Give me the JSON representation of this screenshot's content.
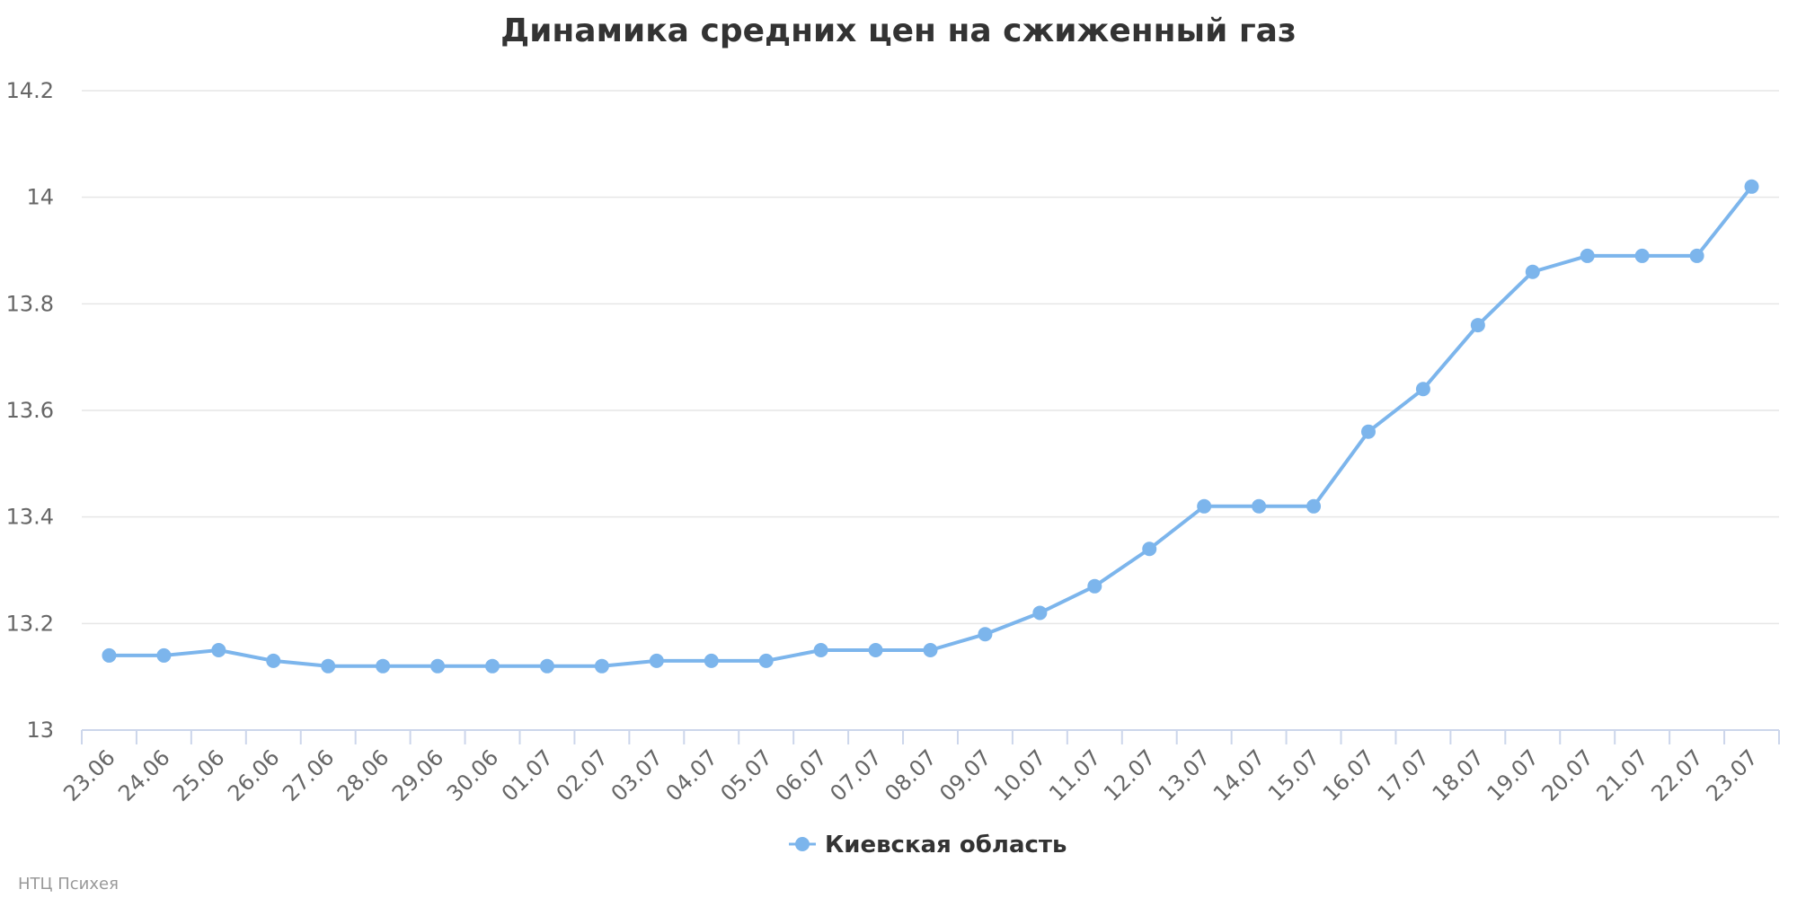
{
  "chart_data": {
    "type": "line",
    "title": "Динамика средних цен на сжиженный газ",
    "categories": [
      "23.06",
      "24.06",
      "25.06",
      "26.06",
      "27.06",
      "28.06",
      "29.06",
      "30.06",
      "01.07",
      "02.07",
      "03.07",
      "04.07",
      "05.07",
      "06.07",
      "07.07",
      "08.07",
      "09.07",
      "10.07",
      "11.07",
      "12.07",
      "13.07",
      "14.07",
      "15.07",
      "16.07",
      "17.07",
      "18.07",
      "19.07",
      "20.07",
      "21.07",
      "22.07",
      "23.07"
    ],
    "series": [
      {
        "name": "Киевская область",
        "color": "#7cb5ec",
        "values": [
          13.14,
          13.14,
          13.15,
          13.13,
          13.12,
          13.12,
          13.12,
          13.12,
          13.12,
          13.12,
          13.13,
          13.13,
          13.13,
          13.15,
          13.15,
          13.15,
          13.18,
          13.22,
          13.27,
          13.34,
          13.42,
          13.42,
          13.42,
          13.56,
          13.64,
          13.76,
          13.86,
          13.89,
          13.89,
          13.89,
          14.02
        ]
      }
    ],
    "ylim": [
      13,
      14.2
    ],
    "yticks": [
      "13",
      "13.2",
      "13.4",
      "13.6",
      "13.8",
      "14",
      "14.2"
    ],
    "xlabel": "",
    "ylabel": "",
    "grid": true,
    "legend_position": "bottom-center"
  },
  "credits": "НТЦ Психея"
}
